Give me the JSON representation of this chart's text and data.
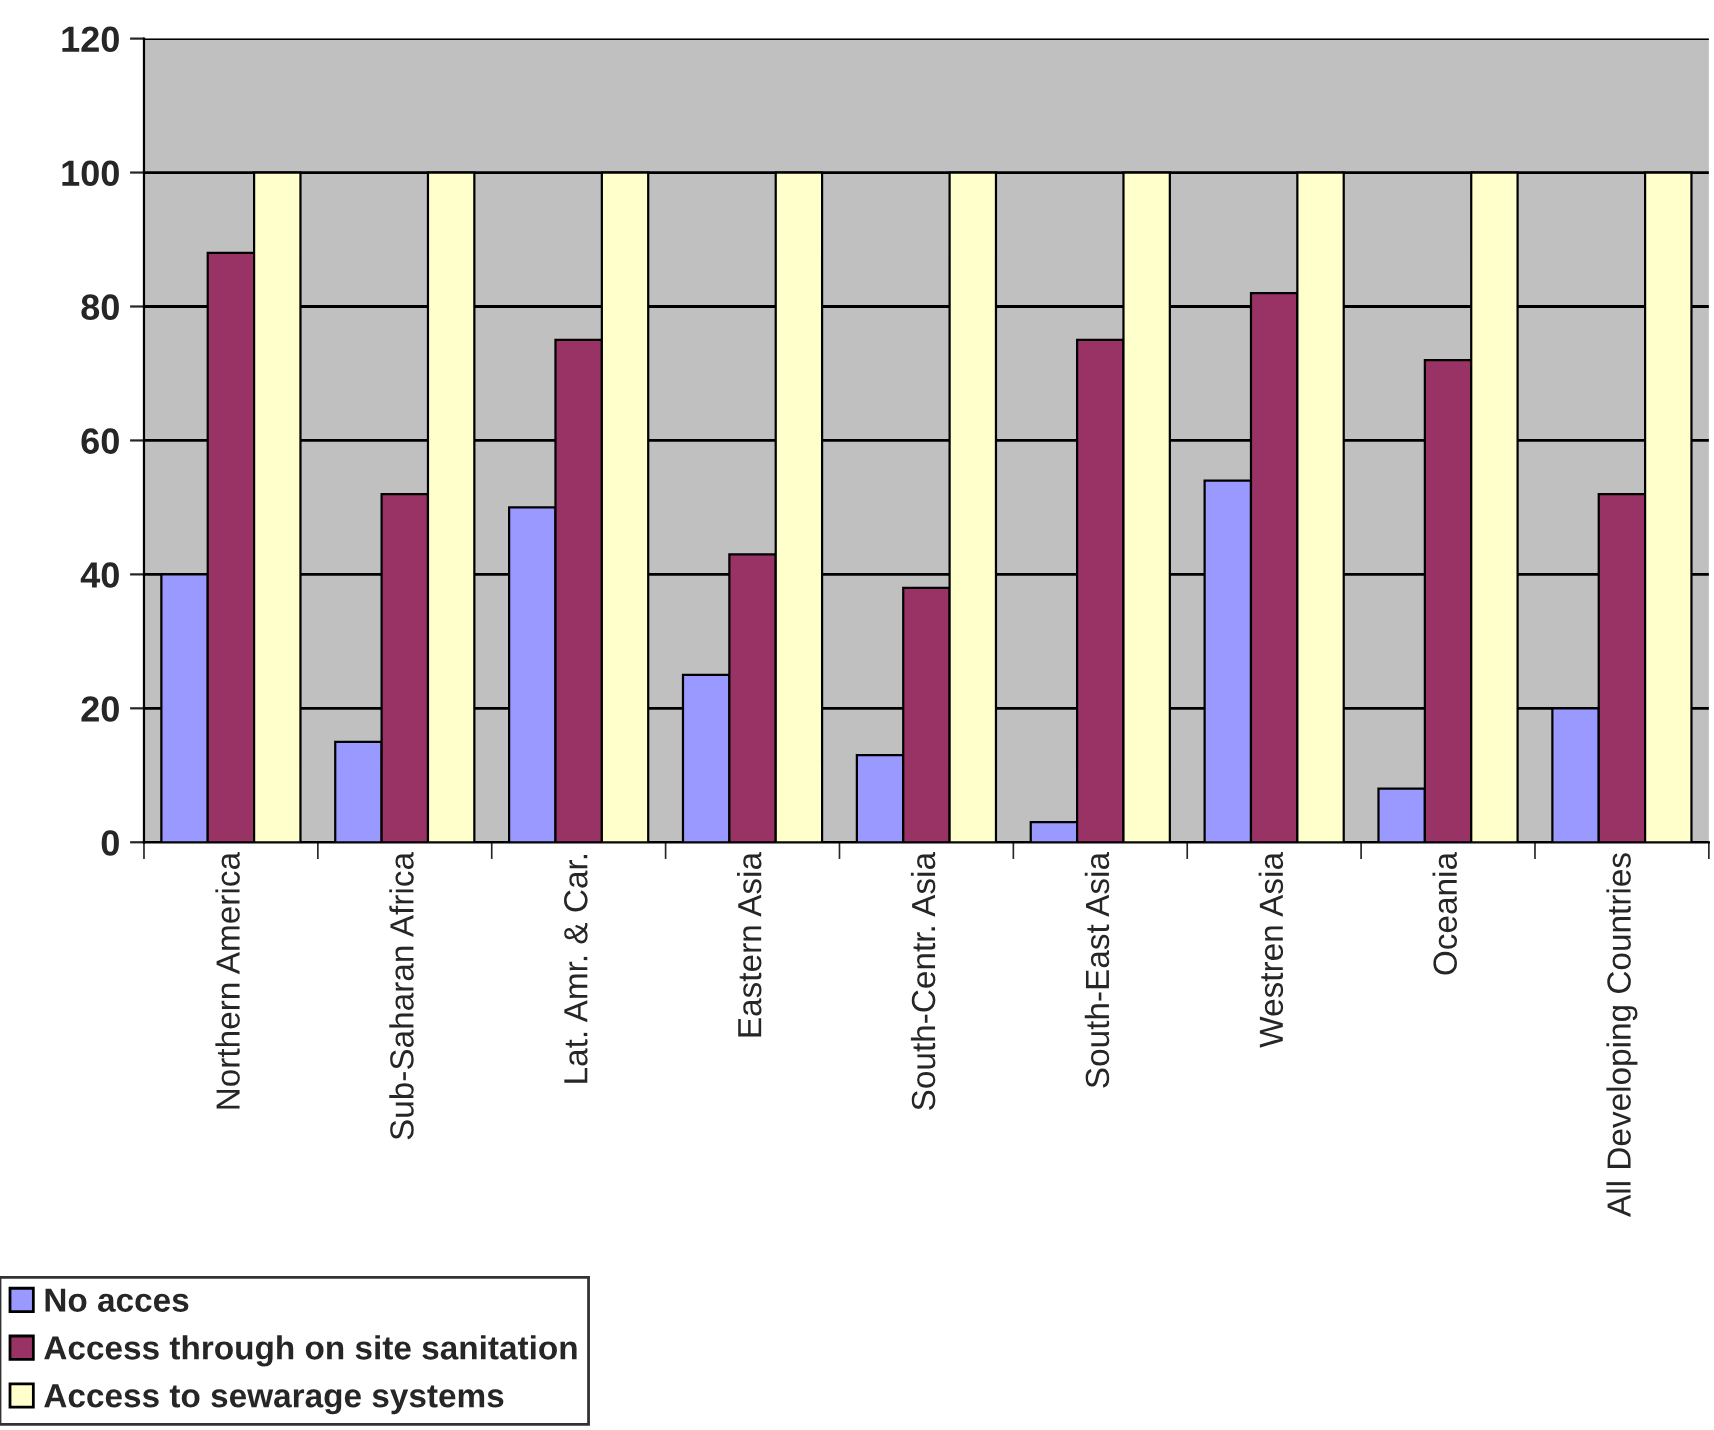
{
  "chart_data": {
    "type": "bar",
    "categories": [
      "Northern America",
      "Sub-Saharan Africa",
      "Lat. Amr. & Car.",
      "Eastern Asia",
      "South-Centr. Asia",
      "South-East Asia",
      "Westren Asia",
      "Oceania",
      "All Developing Countries"
    ],
    "series": [
      {
        "name": "No acces",
        "color": "#9999ff",
        "values": [
          40,
          15,
          50,
          25,
          13,
          3,
          54,
          8,
          20
        ]
      },
      {
        "name": "Access through on site sanitation",
        "color": "#993366",
        "values": [
          88,
          52,
          75,
          43,
          38,
          75,
          82,
          72,
          52
        ]
      },
      {
        "name": "Access to sewarage systems",
        "color": "#ffffcc",
        "values": [
          100,
          100,
          100,
          100,
          100,
          100,
          100,
          100,
          100
        ]
      }
    ],
    "ylim": [
      0,
      120
    ],
    "yticks": [
      0,
      20,
      40,
      60,
      80,
      100,
      120
    ],
    "grid": "y",
    "legend": "bottom left"
  }
}
